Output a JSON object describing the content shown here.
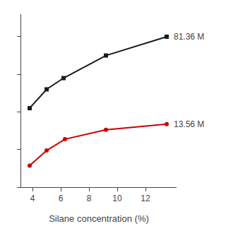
{
  "chart_data": {
    "type": "line",
    "xlabel": "Silane concentration (%)",
    "series": [
      {
        "x": [
          3.8,
          5.0,
          6.2,
          9.2,
          13.5
        ],
        "values": [
          0.42,
          0.52,
          0.58,
          0.7,
          0.8
        ],
        "color": "#1a1a1a",
        "marker": "square",
        "line_style": "solid"
      },
      {
        "x": [
          3.8,
          5.0,
          6.3,
          9.2,
          13.5
        ],
        "values": [
          0.115,
          0.195,
          0.255,
          0.305,
          0.335
        ],
        "color": "#cc0000",
        "marker": "circle",
        "line_style": "solid"
      }
    ],
    "annotations": [
      "81.36 M",
      "13.56 M"
    ],
    "xlim": [
      3.2,
      14.2
    ],
    "ylim": [
      0.0,
      0.92
    ],
    "xticks": [
      4,
      6,
      8,
      10,
      12
    ],
    "yticks": [
      0,
      0.2,
      0.4,
      0.6,
      0.8
    ],
    "tick_labels": "x",
    "grid": false
  }
}
